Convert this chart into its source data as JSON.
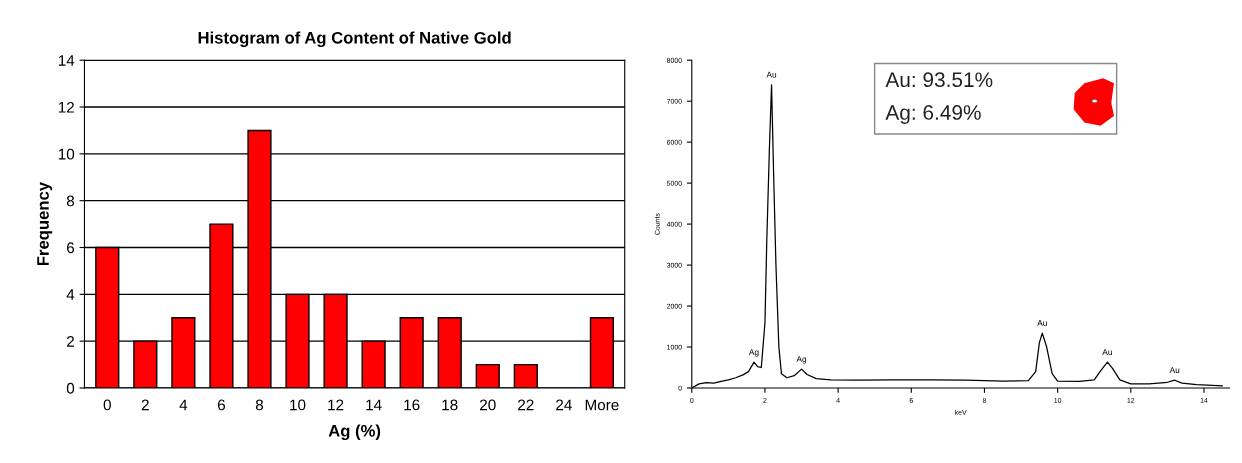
{
  "chart_data": [
    {
      "type": "bar",
      "title": "Histogram of Ag Content of Native Gold",
      "xlabel": "Ag (%)",
      "ylabel": "Frequency",
      "categories": [
        "0",
        "2",
        "4",
        "6",
        "8",
        "10",
        "12",
        "14",
        "16",
        "18",
        "20",
        "22",
        "24",
        "More"
      ],
      "values": [
        6,
        2,
        3,
        7,
        11,
        4,
        4,
        2,
        3,
        3,
        1,
        1,
        0,
        3
      ],
      "color": "#ff0000",
      "ylim": [
        0,
        14
      ],
      "yticks": [
        0,
        2,
        4,
        6,
        8,
        10,
        12,
        14
      ],
      "grid": "y",
      "legend": false
    },
    {
      "type": "line",
      "xlabel": "keV",
      "ylabel": "Counts",
      "color": "#000000",
      "x": [
        0,
        0.2,
        0.4,
        0.6,
        0.8,
        1.0,
        1.2,
        1.4,
        1.55,
        1.7,
        1.8,
        1.9,
        2.0,
        2.05,
        2.12,
        2.18,
        2.24,
        2.3,
        2.38,
        2.45,
        2.6,
        2.8,
        3.0,
        3.15,
        3.4,
        3.8,
        4.5,
        5.5,
        6.5,
        7.5,
        8.5,
        9.2,
        9.4,
        9.5,
        9.58,
        9.7,
        9.85,
        10.0,
        10.6,
        11.0,
        11.2,
        11.36,
        11.5,
        11.7,
        12.0,
        12.5,
        13.0,
        13.2,
        13.4,
        13.8,
        14.5
      ],
      "values": [
        0,
        100,
        130,
        120,
        160,
        200,
        250,
        320,
        400,
        630,
        520,
        500,
        1600,
        3600,
        5800,
        7400,
        5100,
        3000,
        1000,
        350,
        250,
        300,
        460,
        330,
        230,
        200,
        190,
        200,
        200,
        190,
        170,
        180,
        400,
        1100,
        1340,
        1000,
        350,
        170,
        160,
        200,
        450,
        630,
        480,
        200,
        100,
        100,
        140,
        190,
        120,
        80,
        50
      ],
      "xlim": [
        0,
        14.7
      ],
      "xticks": [
        0,
        2,
        4,
        6,
        8,
        10,
        12,
        14
      ],
      "ylim": [
        0,
        8000
      ],
      "yticks": [
        0,
        1000,
        2000,
        3000,
        4000,
        5000,
        6000,
        7000,
        8000
      ],
      "grid": false,
      "legend": false,
      "annotations": [
        {
          "text": "Au",
          "x": 2.18,
          "y": 7400
        },
        {
          "text": "Ag",
          "x": 1.7,
          "y": 630
        },
        {
          "text": "Ag",
          "x": 3.0,
          "y": 460
        },
        {
          "text": "Au",
          "x": 9.58,
          "y": 1340
        },
        {
          "text": "Au",
          "x": 11.36,
          "y": 630
        },
        {
          "text": "Au",
          "x": 13.2,
          "y": 190
        },
        "Au: 93.51%",
        "Ag: 6.49%"
      ]
    }
  ]
}
